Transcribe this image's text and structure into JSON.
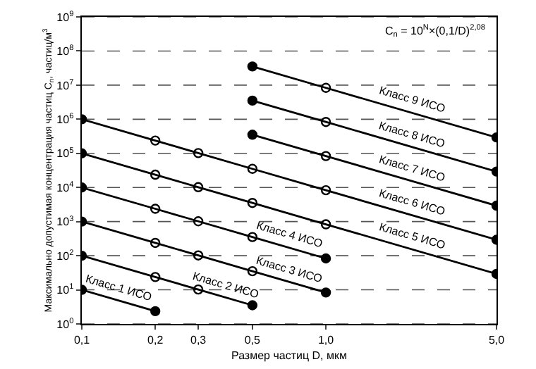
{
  "chart_data": {
    "type": "line",
    "xlabel": "Размер частиц D, мкм",
    "ylabel": "Максимально допустимая концентрация частиц C$_{n}$, частиц/м$^{3}$",
    "annotations": [
      "C$_{n}$ = 10$^{N}$×(0,1/D)$^{2,08}$"
    ],
    "log": "xy",
    "grid": "y",
    "line_style": "solid",
    "marker": "circle",
    "legend": false,
    "xlim": [
      0.1,
      5
    ],
    "xticks": [
      {
        "value": 0.1,
        "label": "0,1"
      },
      {
        "value": 0.2,
        "label": "0,2"
      },
      {
        "value": 0.3,
        "label": "0,3"
      },
      {
        "value": 0.5,
        "label": "0,5"
      },
      {
        "value": 1,
        "label": "1,0"
      },
      {
        "value": 5,
        "label": "5,0"
      }
    ],
    "ylim": [
      1,
      1000000000
    ],
    "yticks": [
      {
        "value": 1,
        "label": "10$^{0}$"
      },
      {
        "value": 10,
        "label": "10$^{1}$"
      },
      {
        "value": 100,
        "label": "10$^{2}$"
      },
      {
        "value": 1000,
        "label": "10$^{3}$"
      },
      {
        "value": 10000,
        "label": "10$^{4}$"
      },
      {
        "value": 100000,
        "label": "10$^{5}$"
      },
      {
        "value": 1000000,
        "label": "10$^{6}$"
      },
      {
        "value": 10000000,
        "label": "10$^{7}$"
      },
      {
        "value": 100000000,
        "label": "10$^{8}$"
      },
      {
        "value": 1000000000,
        "label": "10$^{9}$"
      }
    ],
    "series": [
      {
        "name": "Класс 1 ИСО",
        "color": "#000000",
        "x": [
          0.1,
          0.2
        ],
        "values": [
          10,
          2.37
        ]
      },
      {
        "name": "Класс 2 ИСО",
        "color": "#000000",
        "x": [
          0.1,
          0.2,
          0.3,
          0.5
        ],
        "values": [
          100,
          23.7,
          10.2,
          3.52
        ]
      },
      {
        "name": "Класс 3 ИСО",
        "color": "#000000",
        "x": [
          0.1,
          0.2,
          0.3,
          0.5,
          1
        ],
        "values": [
          1000,
          237,
          102,
          35.2,
          8.32
        ]
      },
      {
        "name": "Класс 4 ИСО",
        "color": "#000000",
        "x": [
          0.1,
          0.2,
          0.3,
          0.5,
          1
        ],
        "values": [
          10000,
          2370,
          1020,
          352,
          83.2
        ]
      },
      {
        "name": "Класс 5 ИСО",
        "color": "#000000",
        "x": [
          0.1,
          0.2,
          0.3,
          0.5,
          1,
          5
        ],
        "values": [
          100000,
          23700,
          10200,
          3520,
          832,
          29.3
        ]
      },
      {
        "name": "Класс 6 ИСО",
        "color": "#000000",
        "x": [
          0.1,
          0.2,
          0.3,
          0.5,
          1,
          5
        ],
        "values": [
          1000000,
          237000,
          102000,
          35200,
          8320,
          293
        ]
      },
      {
        "name": "Класс 7 ИСО",
        "color": "#000000",
        "x": [
          0.5,
          1,
          5
        ],
        "values": [
          352000,
          83200,
          2930
        ]
      },
      {
        "name": "Класс 8 ИСО",
        "color": "#000000",
        "x": [
          0.5,
          1,
          5
        ],
        "values": [
          3520000,
          832000,
          29300
        ]
      },
      {
        "name": "Класс 9 ИСО",
        "color": "#000000",
        "x": [
          0.5,
          1,
          5
        ],
        "values": [
          35200000,
          8320000,
          293000
        ]
      }
    ]
  }
}
